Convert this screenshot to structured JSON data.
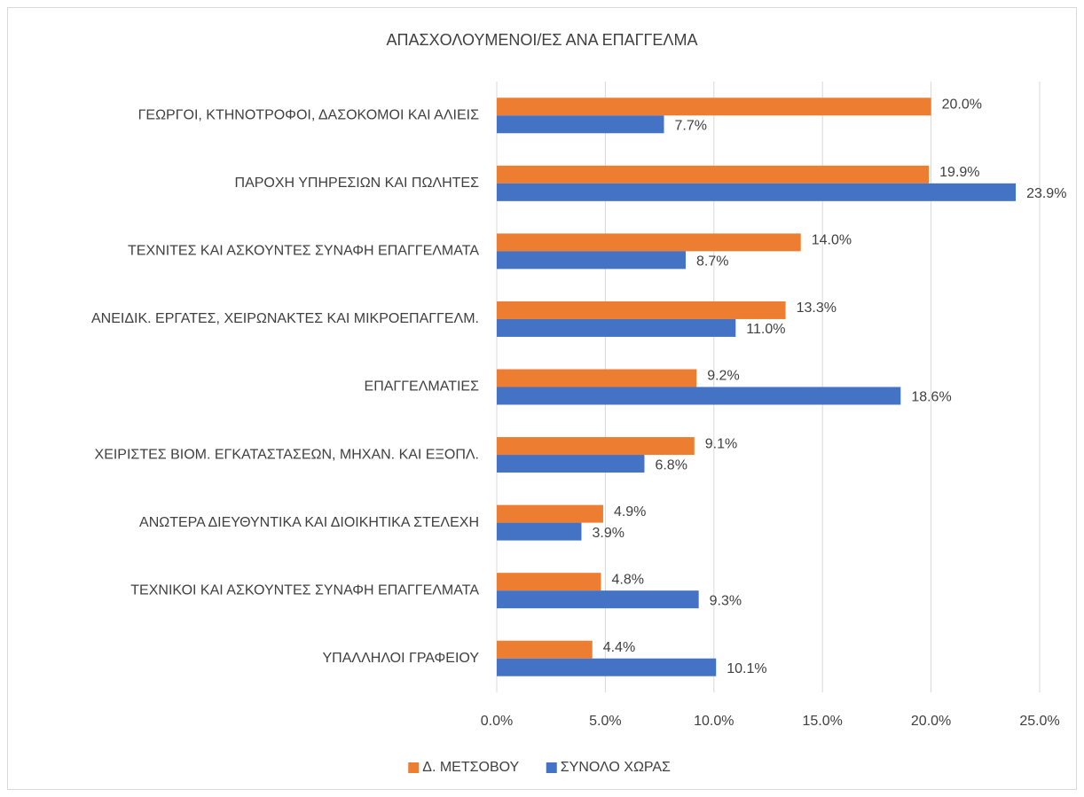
{
  "chart_data": {
    "type": "bar",
    "orientation": "horizontal",
    "title": "ΑΠΑΣΧΟΛΟΥΜΕΝΟΙ/ΕΣ ΑΝΑ ΕΠΑΓΓΕΛΜΑ",
    "categories": [
      "ΓΕΩΡΓΟΙ, ΚΤΗΝΟΤΡΟΦΟΙ, ΔΑΣΟΚΟΜΟΙ ΚΑΙ ΑΛΙΕΙΣ",
      "ΠΑΡΟΧΗ ΥΠΗΡΕΣΙΩΝ ΚΑΙ ΠΩΛΗΤΕΣ",
      "ΤΕΧΝΙΤΕΣ ΚΑΙ ΑΣΚΟΥΝΤΕΣ ΣΥΝΑΦΗ ΕΠΑΓΓΕΛΜΑΤΑ",
      "ΑΝΕΙΔΙΚ. ΕΡΓΑΤΕΣ, ΧΕΙΡΩΝΑΚΤΕΣ ΚΑΙ ΜΙΚΡΟΕΠΑΓΓΕΛΜ.",
      "ΕΠΑΓΓΕΛΜΑΤΙΕΣ",
      "ΧΕΙΡΙΣΤΕΣ ΒΙΟΜ. ΕΓΚΑΤΑΣΤΑΣΕΩΝ, ΜΗΧΑΝ. ΚΑΙ ΕΞΟΠΛ.",
      "ΑΝΩΤΕΡΑ ΔΙΕΥΘΥΝΤΙΚΑ ΚΑΙ ΔΙΟΙΚΗΤΙΚΑ ΣΤΕΛΕΧΗ",
      "ΤΕΧΝΙΚΟΙ ΚΑΙ ΑΣΚΟΥΝΤΕΣ ΣΥΝΑΦΗ ΕΠΑΓΓΕΛΜΑΤΑ",
      "ΥΠΑΛΛΗΛΟΙ ΓΡΑΦΕΙΟΥ"
    ],
    "series": [
      {
        "name": "Δ. ΜΕΤΣΟΒΟΥ",
        "color": "#ed7d31",
        "values": [
          20.0,
          19.9,
          14.0,
          13.3,
          9.2,
          9.1,
          4.9,
          4.8,
          4.4
        ],
        "value_labels": [
          "20.0%",
          "19.9%",
          "14.0%",
          "13.3%",
          "9.2%",
          "9.1%",
          "4.9%",
          "4.8%",
          "4.4%"
        ]
      },
      {
        "name": "ΣΥΝΟΛΟ ΧΩΡΑΣ",
        "color": "#4472c4",
        "values": [
          7.7,
          23.9,
          8.7,
          11.0,
          18.6,
          6.8,
          3.9,
          9.3,
          10.1
        ],
        "value_labels": [
          "7.7%",
          "23.9%",
          "8.7%",
          "11.0%",
          "18.6%",
          "6.8%",
          "3.9%",
          "9.3%",
          "10.1%"
        ]
      }
    ],
    "xlim": [
      0,
      25
    ],
    "xticks": [
      {
        "value": 0,
        "label": "0.0%"
      },
      {
        "value": 5,
        "label": "5.0%"
      },
      {
        "value": 10,
        "label": "10.0%"
      },
      {
        "value": 15,
        "label": "15.0%"
      },
      {
        "value": 20,
        "label": "20.0%"
      },
      {
        "value": 25,
        "label": "25.0%"
      }
    ],
    "grid": true,
    "legend": "bottom"
  }
}
